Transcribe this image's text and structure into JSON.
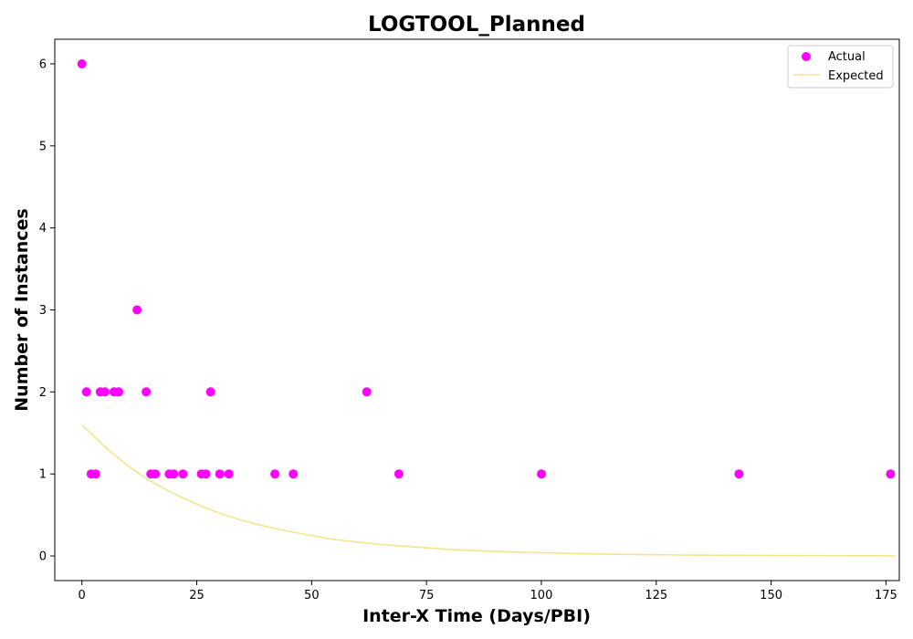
{
  "chart_data": {
    "type": "scatter",
    "title": "LOGTOOL_Planned",
    "xlabel": "Inter-X Time (Days/PBI)",
    "ylabel": "Number of Instances",
    "xlim": [
      -5.9,
      177.9
    ],
    "ylim": [
      -0.3,
      6.3
    ],
    "xticks": [
      0,
      25,
      50,
      75,
      100,
      125,
      150,
      175
    ],
    "yticks": [
      0,
      1,
      2,
      3,
      4,
      5,
      6
    ],
    "grid": false,
    "legend_position": "top-right",
    "series": [
      {
        "name": "Actual",
        "kind": "scatter",
        "color": "#ff00ff",
        "x": [
          0,
          1,
          2,
          3,
          4,
          5,
          7,
          8,
          12,
          14,
          15,
          16,
          19,
          20,
          22,
          26,
          27,
          28,
          30,
          32,
          42,
          46,
          62,
          69,
          100,
          143,
          176
        ],
        "y": [
          6,
          2,
          1,
          1,
          2,
          2,
          2,
          2,
          3,
          2,
          1,
          1,
          1,
          1,
          1,
          1,
          1,
          2,
          1,
          1,
          1,
          1,
          2,
          1,
          1,
          1,
          1
        ]
      },
      {
        "name": "Expected",
        "kind": "line",
        "color": "#f0e68c",
        "x": [
          0,
          5,
          10,
          15,
          20,
          25,
          30,
          35,
          40,
          45,
          50,
          55,
          60,
          65,
          70,
          75,
          80,
          90,
          100,
          110,
          120,
          130,
          140,
          150,
          160,
          170,
          177
        ],
        "y": [
          1.6,
          1.33,
          1.1,
          0.91,
          0.76,
          0.63,
          0.52,
          0.43,
          0.36,
          0.3,
          0.25,
          0.2,
          0.17,
          0.14,
          0.12,
          0.1,
          0.08,
          0.055,
          0.038,
          0.026,
          0.018,
          0.012,
          0.008,
          0.006,
          0.004,
          0.003,
          0.002
        ]
      }
    ]
  }
}
